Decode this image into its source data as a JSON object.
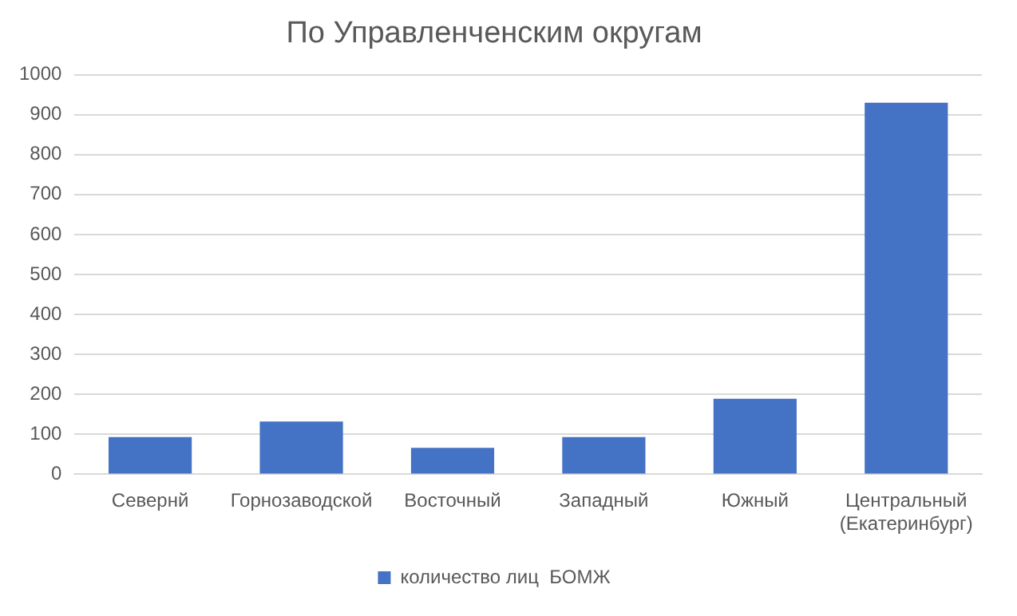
{
  "chart_data": {
    "type": "bar",
    "title": "По Управленченским округам",
    "categories": [
      "Севернй",
      "Горнозаводской",
      "Восточный",
      "Западный",
      "Южный",
      "Центральный (Екатеринбург)"
    ],
    "series": [
      {
        "name": "количество лиц  БОМЖ",
        "color": "#4472c4",
        "values": [
          93,
          132,
          66,
          93,
          189,
          930
        ]
      }
    ],
    "ylim": [
      0,
      1000
    ],
    "yticks": [
      0,
      100,
      200,
      300,
      400,
      500,
      600,
      700,
      800,
      900,
      1000
    ],
    "grid": "y",
    "legend": "bottom"
  }
}
